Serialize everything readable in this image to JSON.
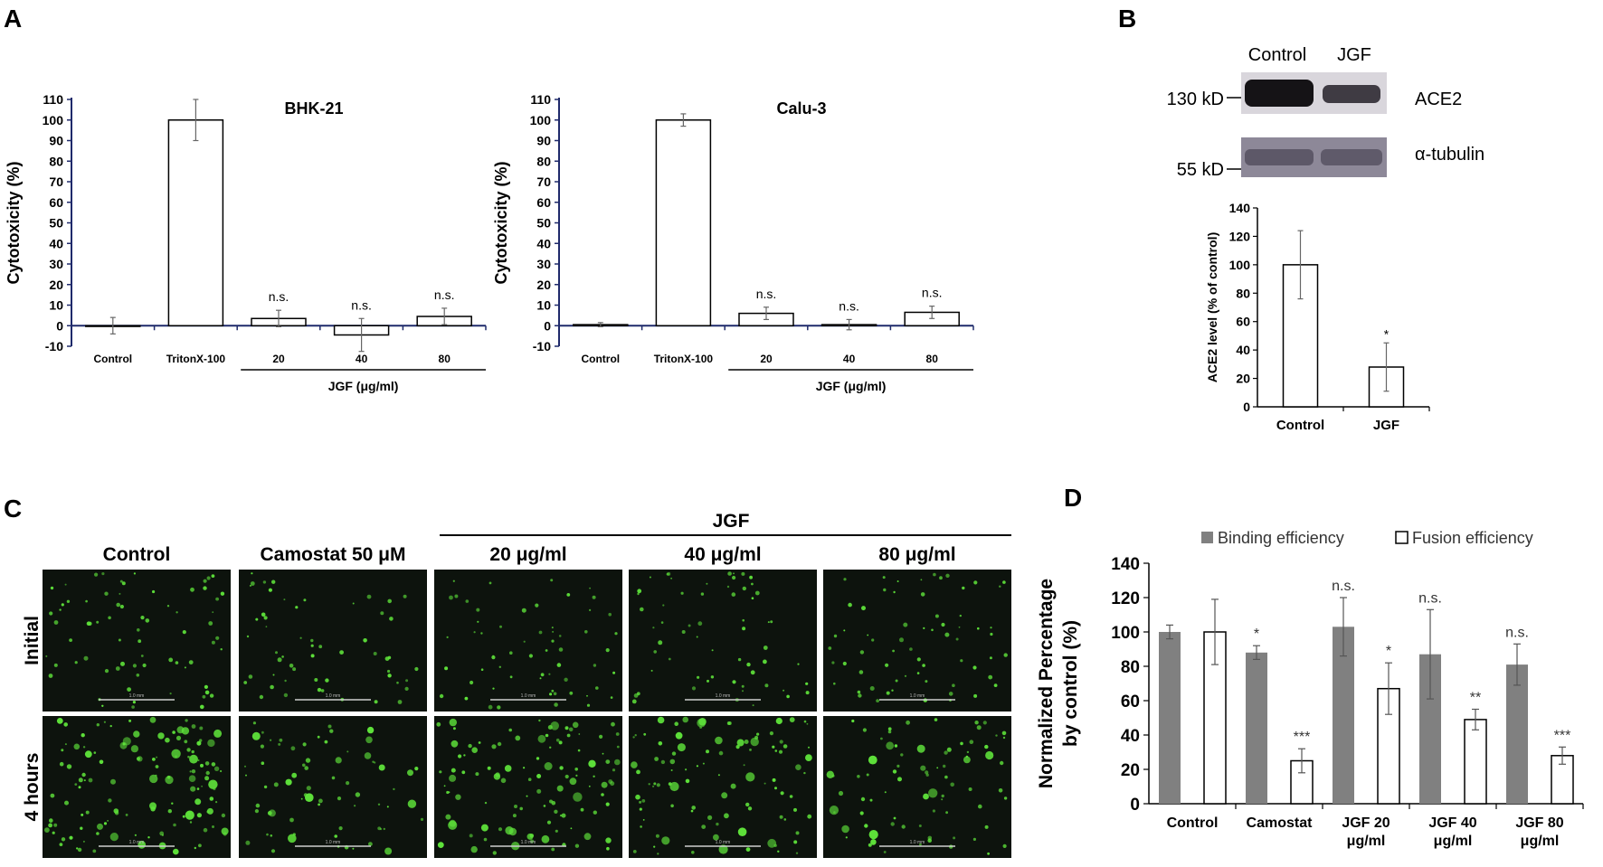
{
  "panels": {
    "A": {
      "letter": "A"
    },
    "B": {
      "letter": "B"
    },
    "C": {
      "letter": "C"
    },
    "D": {
      "letter": "D"
    }
  },
  "chart_data": [
    {
      "id": "A1",
      "type": "bar",
      "title": "BHK-21",
      "ylabel": "Cytotoxicity (%)",
      "categories": [
        "Control",
        "TritonX-100",
        "20",
        "40",
        "80"
      ],
      "values": [
        0,
        100,
        3.5,
        -4.5,
        4.5
      ],
      "errors": [
        4,
        10,
        4,
        8,
        4
      ],
      "annotations": [
        "",
        "",
        "n.s.",
        "n.s.",
        "n.s."
      ],
      "group_label": "JGF (μg/ml)",
      "yticks": [
        -10,
        0,
        10,
        20,
        30,
        40,
        50,
        60,
        70,
        80,
        90,
        100,
        110
      ],
      "ylim": [
        -10,
        110
      ],
      "grid": false
    },
    {
      "id": "A2",
      "type": "bar",
      "title": "Calu-3",
      "ylabel": "Cytotoxicity (%)",
      "categories": [
        "Control",
        "TritonX-100",
        "20",
        "40",
        "80"
      ],
      "values": [
        0.5,
        100,
        6,
        0.5,
        6.5
      ],
      "errors": [
        1,
        3,
        3,
        2.5,
        3
      ],
      "annotations": [
        "",
        "",
        "n.s.",
        "n.s.",
        "n.s."
      ],
      "group_label": "JGF (μg/ml)",
      "yticks": [
        -10,
        0,
        10,
        20,
        30,
        40,
        50,
        60,
        70,
        80,
        90,
        100,
        110
      ],
      "ylim": [
        -10,
        110
      ],
      "grid": false
    },
    {
      "id": "B",
      "type": "bar",
      "ylabel": "ACE2 level (% of control)",
      "categories": [
        "Control",
        "JGF"
      ],
      "values": [
        100,
        28
      ],
      "errors": [
        24,
        17
      ],
      "annotations": [
        "",
        "*"
      ],
      "yticks": [
        0,
        20,
        40,
        60,
        80,
        100,
        120,
        140
      ],
      "ylim": [
        0,
        140
      ],
      "grid": false
    },
    {
      "id": "D",
      "type": "bar",
      "ylabel": [
        "Normalized Percentage",
        "by control (%)"
      ],
      "categories": [
        [
          "Control"
        ],
        [
          "Camostat"
        ],
        [
          "JGF 20",
          "μg/ml"
        ],
        [
          "JGF 40",
          "μg/ml"
        ],
        [
          "JGF 80",
          "μg/ml"
        ]
      ],
      "series": [
        {
          "name": "Binding efficiency",
          "color": "#808080",
          "values": [
            100,
            88,
            103,
            87,
            81
          ],
          "errors": [
            4,
            4,
            17,
            26,
            12
          ],
          "annotations": [
            "",
            "*",
            "n.s.",
            "n.s.",
            "n.s."
          ]
        },
        {
          "name": "Fusion efficiency",
          "color": "#ffffff",
          "values": [
            100,
            25,
            67,
            49,
            28
          ],
          "errors": [
            19,
            7,
            15,
            6,
            5
          ],
          "annotations": [
            "",
            "***",
            "*",
            "**",
            "***"
          ]
        }
      ],
      "yticks": [
        0,
        20,
        40,
        60,
        80,
        100,
        120,
        140
      ],
      "ylim": [
        0,
        140
      ],
      "legend_position": "top",
      "grid": false
    }
  ],
  "blot": {
    "lanes": [
      "Control",
      "JGF"
    ],
    "bands": [
      {
        "marker": "130 kD",
        "protein": "ACE2"
      },
      {
        "marker": "55 kD",
        "protein": "α-tubulin"
      }
    ]
  },
  "micrographs": {
    "group_label": "JGF",
    "columns": [
      "Control",
      "Camostat 50 μM",
      "20 μg/ml",
      "40 μg/ml",
      "80 μg/ml"
    ],
    "rows": [
      "Initial",
      "4 hours"
    ],
    "scale_bar": "1.0 mm",
    "colors": {
      "background": "#0d130d",
      "cells": "#5ee23a"
    }
  }
}
